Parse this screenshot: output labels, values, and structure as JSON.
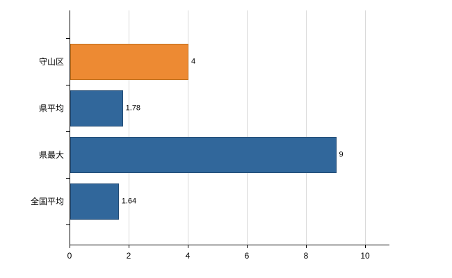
{
  "chart_data": {
    "type": "bar",
    "orientation": "horizontal",
    "title": "",
    "categories": [
      "守山区",
      "県平均",
      "県最大",
      "全国平均"
    ],
    "values": [
      4,
      1.78,
      9,
      1.64
    ],
    "value_labels": [
      "4",
      "1.78",
      "9",
      "1.64"
    ],
    "bar_colors": [
      "#ED8A33",
      "#31679B",
      "#31679B",
      "#31679B"
    ],
    "bar_border_colors": [
      "#C06E1A",
      "#234C75",
      "#234C75",
      "#234C75"
    ],
    "xlim": [
      0,
      10.8
    ],
    "xticks": [
      0,
      2,
      4,
      6,
      8,
      10
    ],
    "xtick_labels": [
      "0",
      "2",
      "4",
      "6",
      "8",
      "10"
    ],
    "grid": "vertical",
    "legend": "none",
    "colors": {
      "gridline": "#D9D9D9",
      "axis": "#000000",
      "text": "#000000",
      "background": "#FFFFFF"
    }
  }
}
